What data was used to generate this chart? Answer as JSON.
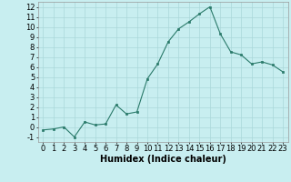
{
  "x": [
    0,
    1,
    2,
    3,
    4,
    5,
    6,
    7,
    8,
    9,
    10,
    11,
    12,
    13,
    14,
    15,
    16,
    17,
    18,
    19,
    20,
    21,
    22,
    23
  ],
  "y": [
    -0.3,
    -0.2,
    0.0,
    -1.0,
    0.5,
    0.2,
    0.3,
    2.2,
    1.3,
    1.5,
    4.8,
    6.3,
    8.5,
    9.8,
    10.5,
    11.3,
    12.0,
    9.3,
    7.5,
    7.2,
    6.3,
    6.5,
    6.2,
    5.5
  ],
  "xlabel": "Humidex (Indice chaleur)",
  "ylim": [
    -1.5,
    12.5
  ],
  "xlim": [
    -0.5,
    23.5
  ],
  "yticks": [
    -1,
    0,
    1,
    2,
    3,
    4,
    5,
    6,
    7,
    8,
    9,
    10,
    11,
    12
  ],
  "xticks": [
    0,
    1,
    2,
    3,
    4,
    5,
    6,
    7,
    8,
    9,
    10,
    11,
    12,
    13,
    14,
    15,
    16,
    17,
    18,
    19,
    20,
    21,
    22,
    23
  ],
  "line_color": "#2a7a6a",
  "marker_color": "#2a7a6a",
  "bg_color": "#c8eef0",
  "grid_color": "#aad8da",
  "xlabel_fontsize": 7,
  "tick_fontsize": 6
}
